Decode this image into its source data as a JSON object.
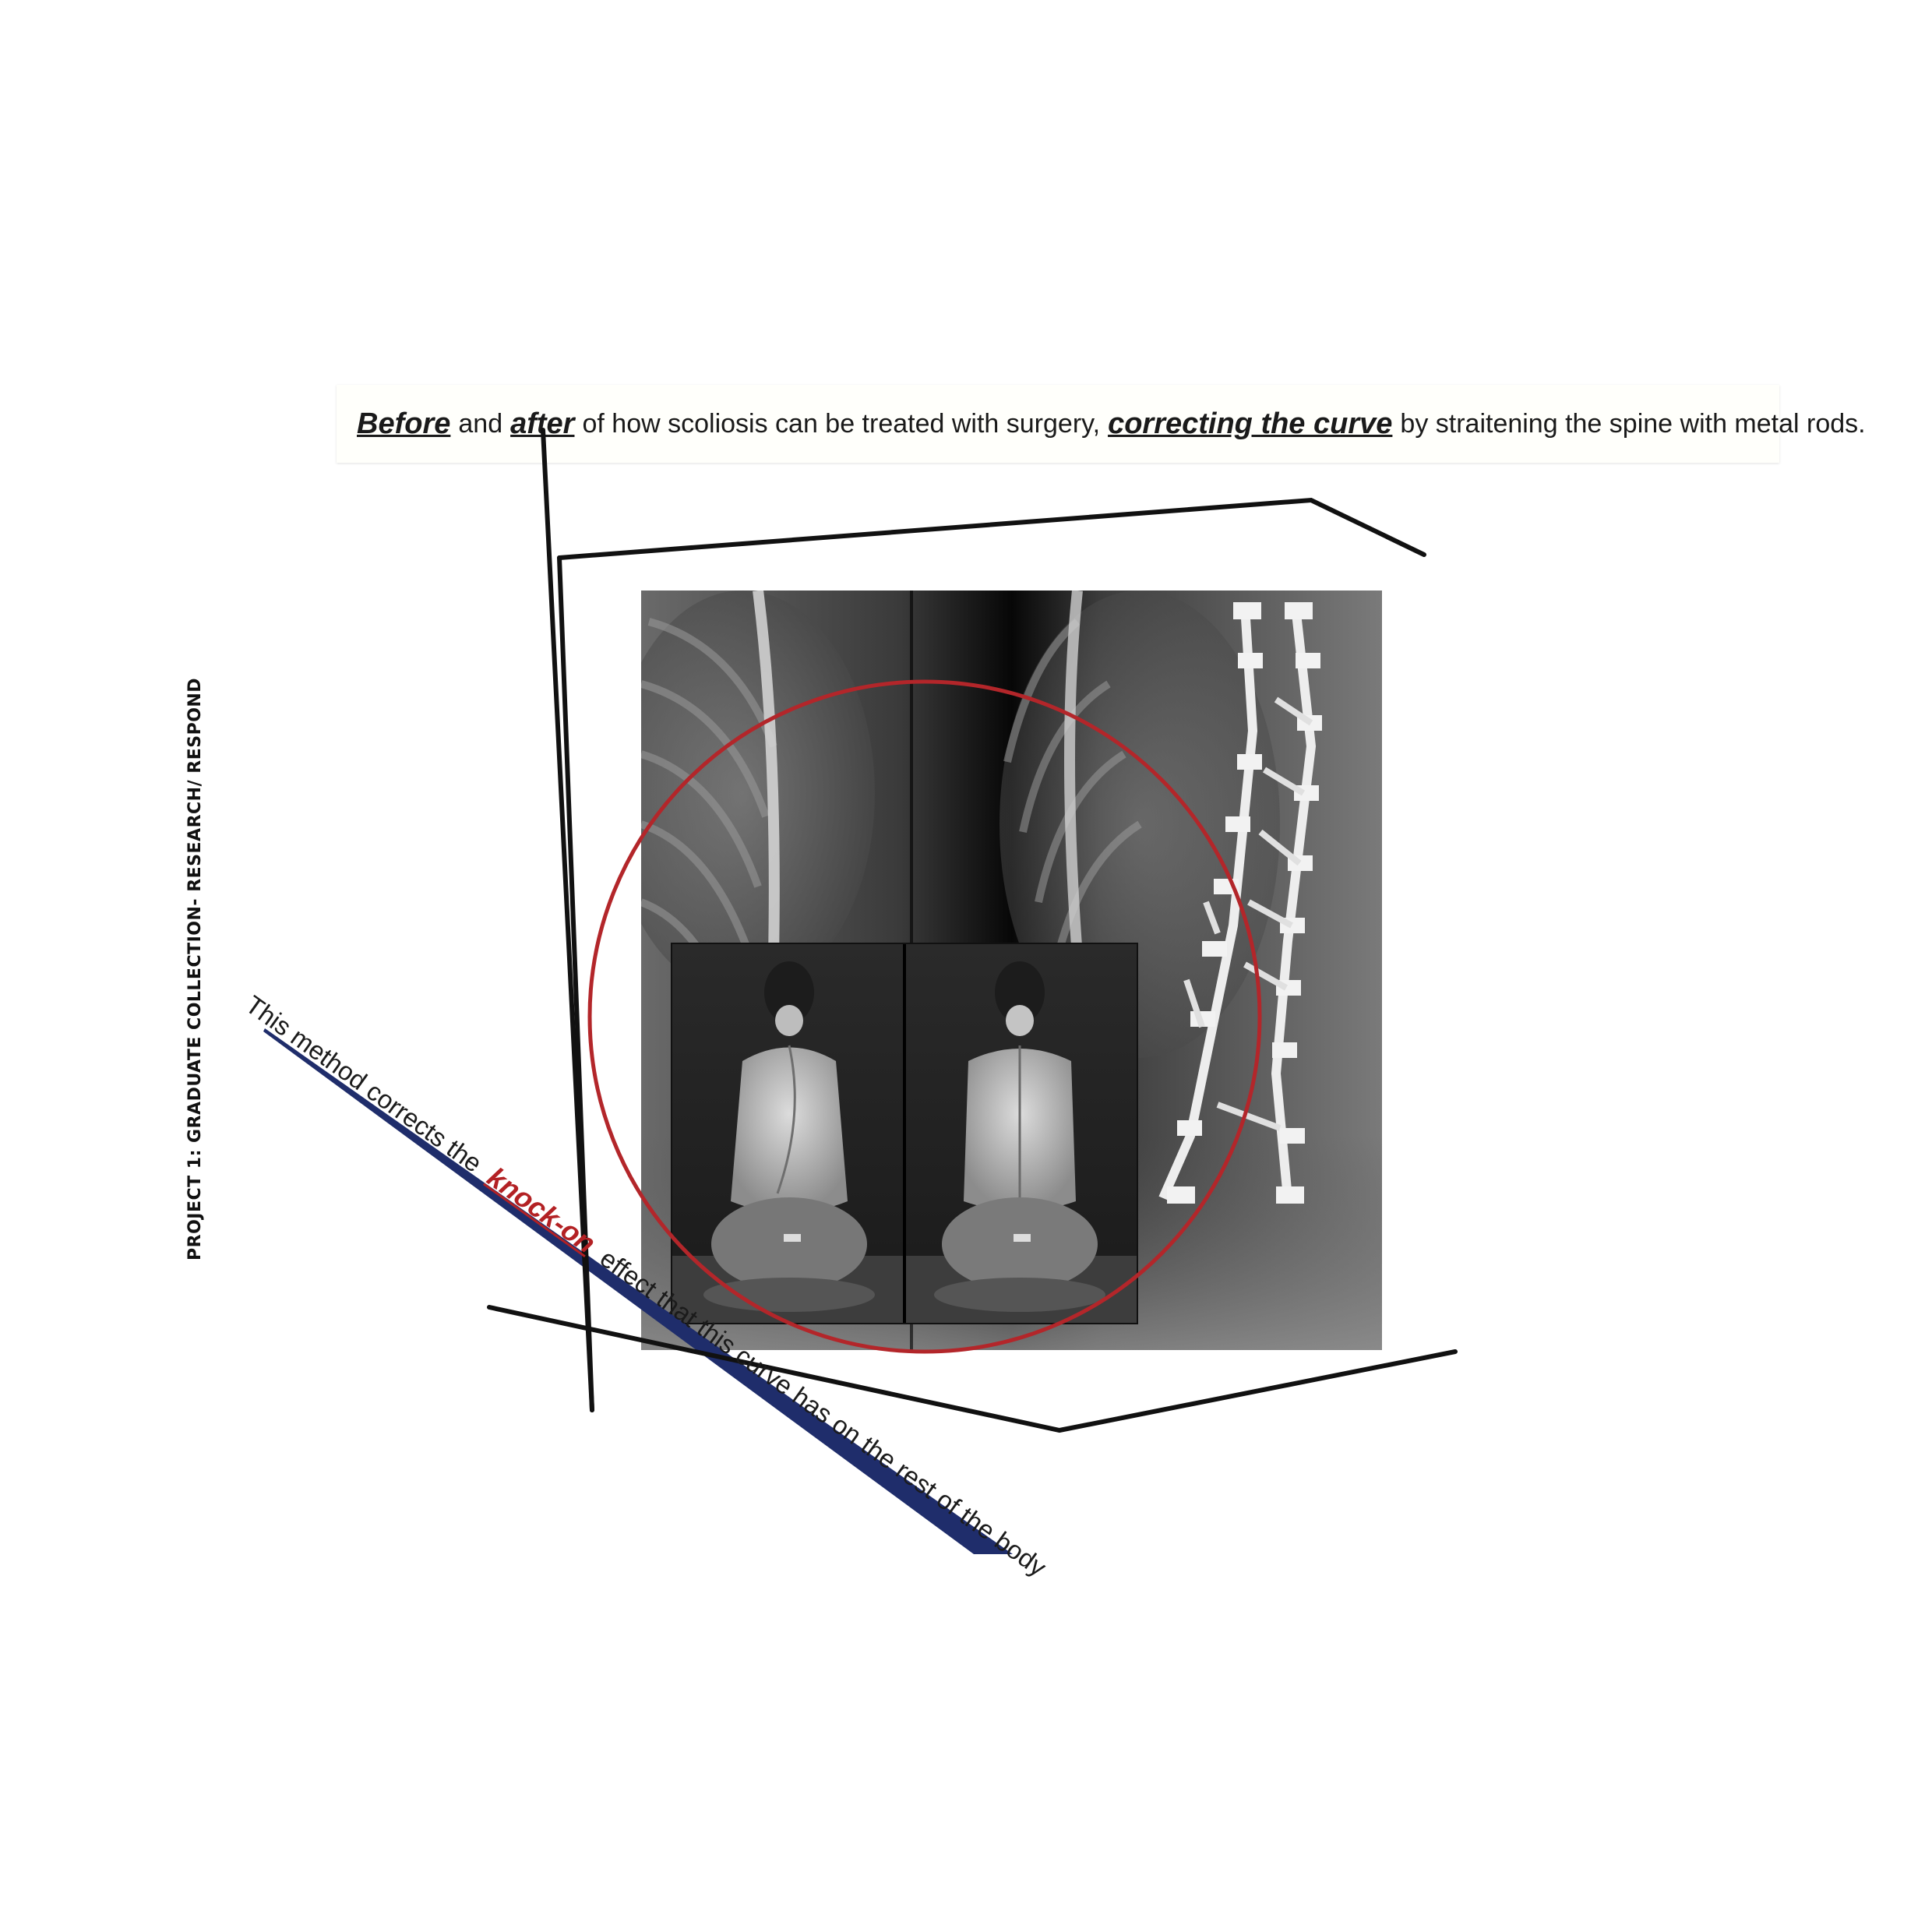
{
  "caption": {
    "before": "Before",
    "and": "and",
    "after": "after",
    "middle": "of how scoliosis can be treated with surgery,",
    "correcting": "correcting the curve",
    "end": "by straitening the spine with metal rods."
  },
  "side_label": "PROJECT 1: GRADUATE COLLECTION- RESEARCH/ RESPOND",
  "diagonal_caption": {
    "start": "This method corrects the",
    "highlight": "knock-on",
    "end": "effect that this curve has on the rest of the body"
  },
  "images": {
    "xray_before_after": "spine-xray-before-after-with-metal-rods",
    "back_photos": "before-after-back-photographs"
  },
  "colors": {
    "highlight_red": "#b32124",
    "circle_red": "#b3262a",
    "line_black": "#111111",
    "navy_wedge": "#1f2d6b"
  }
}
